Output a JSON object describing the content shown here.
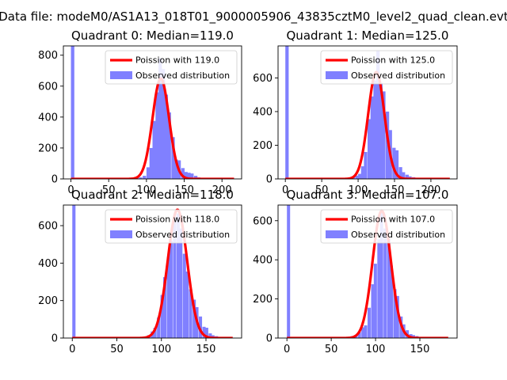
{
  "figure": {
    "suptitle": "Data file: modeM0/AS1A13_018T01_9000005906_43835cztM0_level2_quad_clean.evt"
  },
  "chart_data": [
    {
      "type": "bar",
      "title": "Quadrant 0: Median=119.0",
      "xlabel": "",
      "ylabel": "",
      "xlim": [
        -10,
        226
      ],
      "ylim": [
        0,
        860
      ],
      "xticks": [
        0,
        50,
        100,
        150,
        200
      ],
      "yticks": [
        0,
        200,
        400,
        600,
        800
      ],
      "legend_position": "upper right",
      "series": [
        {
          "name": "Poission with 119.0",
          "kind": "line",
          "color": "#ff0000",
          "mu": 119.0,
          "peak": 650,
          "x_start": 0,
          "x_end": 216
        },
        {
          "name": "Observed distribution",
          "kind": "hist",
          "color": "#8080ff",
          "bin_width": 4.5,
          "bins": [
            [
              0,
              860
            ],
            [
              75,
              2
            ],
            [
              80,
              3
            ],
            [
              85,
              5
            ],
            [
              90,
              10
            ],
            [
              95,
              20
            ],
            [
              100,
              75
            ],
            [
              104,
              200
            ],
            [
              108,
              375
            ],
            [
              112,
              560
            ],
            [
              116,
              780
            ],
            [
              120,
              710
            ],
            [
              124,
              545
            ],
            [
              128,
              430
            ],
            [
              133,
              270
            ],
            [
              137,
              125
            ],
            [
              141,
              120
            ],
            [
              146,
              70
            ],
            [
              150,
              45
            ],
            [
              154,
              40
            ],
            [
              158,
              35
            ],
            [
              163,
              20
            ],
            [
              167,
              10
            ],
            [
              171,
              5
            ]
          ]
        }
      ]
    },
    {
      "type": "bar",
      "title": "Quadrant 1: Median=125.0",
      "xlabel": "",
      "ylabel": "",
      "xlim": [
        -10,
        236
      ],
      "ylim": [
        0,
        790
      ],
      "xticks": [
        0,
        50,
        100,
        150,
        200
      ],
      "yticks": [
        0,
        200,
        400,
        600
      ],
      "legend_position": "upper right",
      "series": [
        {
          "name": "Poission with 125.0",
          "kind": "line",
          "color": "#ff0000",
          "mu": 125.0,
          "peak": 635,
          "x_start": 0,
          "x_end": 226
        },
        {
          "name": "Observed distribution",
          "kind": "hist",
          "color": "#8080ff",
          "bin_width": 4.6,
          "bins": [
            [
              0,
              790
            ],
            [
              80,
              2
            ],
            [
              86,
              5
            ],
            [
              91,
              10
            ],
            [
              96,
              20
            ],
            [
              100,
              30
            ],
            [
              104,
              75
            ],
            [
              108,
              160
            ],
            [
              113,
              355
            ],
            [
              117,
              490
            ],
            [
              121,
              585
            ],
            [
              125,
              760
            ],
            [
              129,
              570
            ],
            [
              133,
              520
            ],
            [
              138,
              400
            ],
            [
              142,
              290
            ],
            [
              147,
              185
            ],
            [
              151,
              170
            ],
            [
              156,
              70
            ],
            [
              160,
              40
            ],
            [
              165,
              25
            ],
            [
              169,
              15
            ],
            [
              174,
              10
            ],
            [
              178,
              5
            ]
          ]
        }
      ]
    },
    {
      "type": "bar",
      "title": "Quadrant 2: Median=118.0",
      "xlabel": "",
      "ylabel": "",
      "xlim": [
        -10,
        190
      ],
      "ylim": [
        0,
        710
      ],
      "xticks": [
        0,
        50,
        100,
        150
      ],
      "yticks": [
        0,
        200,
        400,
        600
      ],
      "legend_position": "upper right",
      "series": [
        {
          "name": "Poission with 118.0",
          "kind": "line",
          "color": "#ff0000",
          "mu": 118.0,
          "peak": 685,
          "x_start": 0,
          "x_end": 180
        },
        {
          "name": "Observed distribution",
          "kind": "hist",
          "color": "#8080ff",
          "bin_width": 3.6,
          "bins": [
            [
              0,
              710
            ],
            [
              72,
              2
            ],
            [
              76,
              4
            ],
            [
              80,
              8
            ],
            [
              84,
              15
            ],
            [
              88,
              35
            ],
            [
              91,
              55
            ],
            [
              95,
              110
            ],
            [
              99,
              230
            ],
            [
              102,
              325
            ],
            [
              106,
              430
            ],
            [
              109,
              520
            ],
            [
              113,
              645
            ],
            [
              117,
              665
            ],
            [
              120,
              585
            ],
            [
              124,
              450
            ],
            [
              127,
              355
            ],
            [
              131,
              260
            ],
            [
              135,
              205
            ],
            [
              138,
              165
            ],
            [
              142,
              115
            ],
            [
              146,
              60
            ],
            [
              149,
              55
            ],
            [
              153,
              25
            ],
            [
              156,
              15
            ],
            [
              160,
              10
            ],
            [
              164,
              5
            ],
            [
              167,
              3
            ]
          ]
        }
      ]
    },
    {
      "type": "bar",
      "title": "Quadrant 3: Median=107.0",
      "xlabel": "",
      "ylabel": "",
      "xlim": [
        -10,
        192
      ],
      "ylim": [
        0,
        680
      ],
      "xticks": [
        0,
        50,
        100,
        150
      ],
      "yticks": [
        0,
        200,
        400,
        600
      ],
      "legend_position": "upper right",
      "series": [
        {
          "name": "Poission with 107.0",
          "kind": "line",
          "color": "#ff0000",
          "mu": 107.0,
          "peak": 650,
          "x_start": 0,
          "x_end": 182
        },
        {
          "name": "Observed distribution",
          "kind": "hist",
          "color": "#8080ff",
          "bin_width": 3.6,
          "bins": [
            [
              0,
              680
            ],
            [
              65,
              2
            ],
            [
              69,
              5
            ],
            [
              72,
              10
            ],
            [
              76,
              15
            ],
            [
              80,
              30
            ],
            [
              84,
              55
            ],
            [
              87,
              65
            ],
            [
              91,
              155
            ],
            [
              95,
              275
            ],
            [
              98,
              380
            ],
            [
              102,
              505
            ],
            [
              105,
              640
            ],
            [
              109,
              560
            ],
            [
              113,
              510
            ],
            [
              116,
              370
            ],
            [
              120,
              250
            ],
            [
              123,
              215
            ],
            [
              127,
              110
            ],
            [
              130,
              70
            ],
            [
              134,
              40
            ],
            [
              138,
              20
            ],
            [
              141,
              15
            ],
            [
              145,
              10
            ],
            [
              148,
              5
            ],
            [
              152,
              3
            ]
          ]
        }
      ]
    }
  ]
}
